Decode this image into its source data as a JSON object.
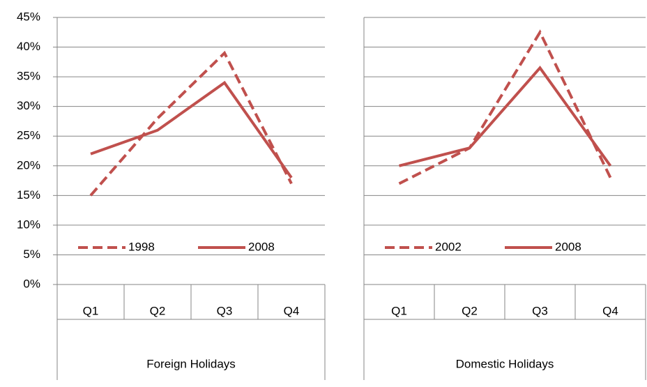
{
  "chart_data": [
    {
      "type": "line",
      "group_label": "Foreign Holidays",
      "categories": [
        "Q1",
        "Q2",
        "Q3",
        "Q4"
      ],
      "series": [
        {
          "name": "1998",
          "color": "#c0504d",
          "dash": true,
          "values": [
            15,
            28,
            39,
            17
          ]
        },
        {
          "name": "2008",
          "color": "#c0504d",
          "dash": false,
          "values": [
            22,
            26,
            34,
            18
          ]
        }
      ],
      "ylim": [
        0,
        45
      ],
      "yticks": [
        {
          "value": 0,
          "label": "0%"
        },
        {
          "value": 5,
          "label": "5%"
        },
        {
          "value": 10,
          "label": "10%"
        },
        {
          "value": 15,
          "label": "15%"
        },
        {
          "value": 20,
          "label": "20%"
        },
        {
          "value": 25,
          "label": "25%"
        },
        {
          "value": 30,
          "label": "30%"
        },
        {
          "value": 35,
          "label": "35%"
        },
        {
          "value": 40,
          "label": "40%"
        },
        {
          "value": 45,
          "label": "45%"
        }
      ],
      "grid": true
    },
    {
      "type": "line",
      "group_label": "Domestic Holidays",
      "categories": [
        "Q1",
        "Q2",
        "Q3",
        "Q4"
      ],
      "series": [
        {
          "name": "2002",
          "color": "#c0504d",
          "dash": true,
          "values": [
            17,
            23,
            42.5,
            18
          ]
        },
        {
          "name": "2008",
          "color": "#c0504d",
          "dash": false,
          "values": [
            20,
            23,
            36.5,
            20
          ]
        }
      ],
      "ylim": [
        0,
        45
      ],
      "yticks": [
        0,
        5,
        10,
        15,
        20,
        25,
        30,
        35,
        40,
        45
      ],
      "grid": true
    }
  ]
}
